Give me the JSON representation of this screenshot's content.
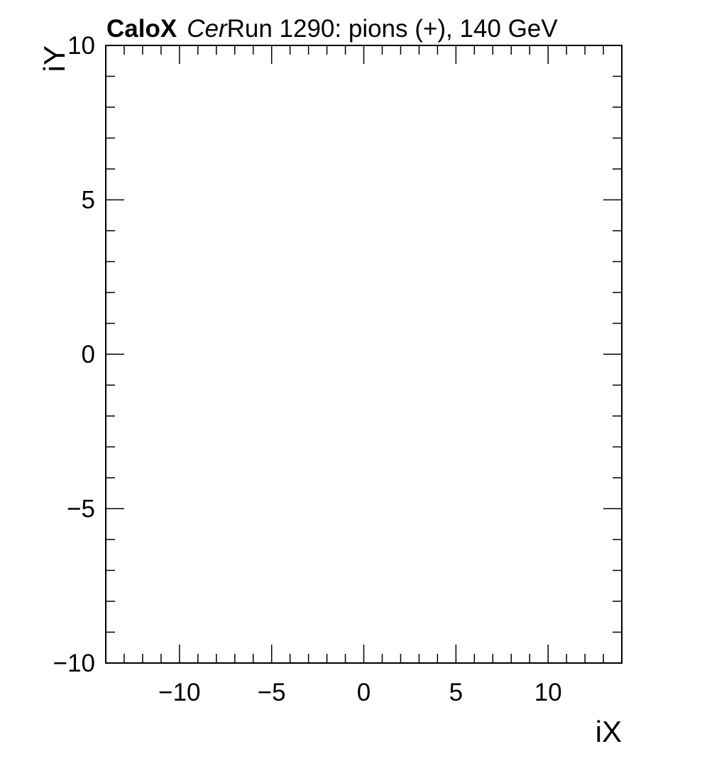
{
  "chart_data": {
    "type": "heatmap",
    "title": {
      "prefix": "CaloX",
      "channel": "Cer",
      "text": "Run 1290: pions (+), 140 GeV"
    },
    "xlabel": "iX",
    "ylabel": "iY",
    "xlim": [
      -14,
      14
    ],
    "ylim": [
      -10,
      10
    ],
    "x_major_ticks": [
      -10,
      -5,
      0,
      5,
      10
    ],
    "x_tick_labels": [
      "−10",
      "−5",
      "0",
      "5",
      "10"
    ],
    "y_major_ticks": [
      -10,
      -5,
      0,
      5,
      10
    ],
    "y_tick_labels": [
      "−10",
      "−5",
      "0",
      "5",
      "10"
    ],
    "x_minor_step": 1,
    "y_minor_step": 1,
    "grid": false,
    "values": []
  }
}
